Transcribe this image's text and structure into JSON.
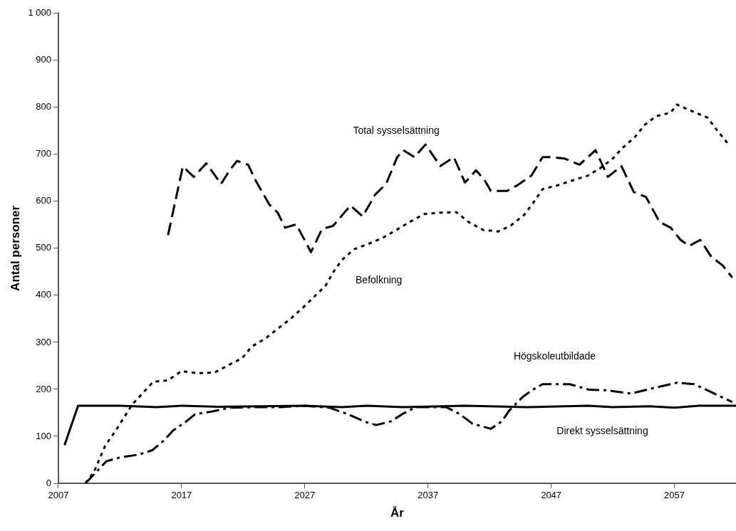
{
  "chart_data": {
    "type": "line",
    "xlabel": "År",
    "ylabel": "Antal personer",
    "xlim": [
      2007,
      2062
    ],
    "xticks": [
      2007,
      2017,
      2027,
      2037,
      2047,
      2057
    ],
    "ylim": [
      0,
      1000
    ],
    "yticks": [
      0,
      100,
      200,
      300,
      400,
      500,
      600,
      700,
      800,
      900,
      {
        "value": 1000,
        "label": "1 000"
      }
    ],
    "grid": false,
    "legend": false,
    "marker": "none",
    "series": [
      {
        "name": "Total sysselsättning",
        "color": "#000000",
        "line_style": "dashed",
        "x": [
          2015.9,
          2017.1,
          2018,
          2019,
          2019.5,
          2020.2,
          2020.9,
          2021.5,
          2022.4,
          2023,
          2024.1,
          2024.8,
          2025.4,
          2026.3,
          2026.9,
          2027.5,
          2028.4,
          2029.3,
          2030.7,
          2031.7,
          2032.7,
          2033.6,
          2034.5,
          2035,
          2035.9,
          2036.8,
          2038,
          2039.1,
          2040,
          2040.9,
          2041.6,
          2042.1,
          2043.4,
          2044.3,
          2045.4,
          2046.3,
          2047.1,
          2048.1,
          2049.3,
          2050.6,
          2051.6,
          2052.7,
          2053.7,
          2054.7,
          2055.8,
          2056.7,
          2057.5,
          2058.2,
          2059.1,
          2060,
          2060.9,
          2061.7
        ],
        "values": [
          528,
          674,
          652,
          681,
          663,
          637,
          666,
          686,
          678,
          645,
          594,
          576,
          544,
          551,
          522,
          492,
          541,
          548,
          591,
          568,
          614,
          637,
          694,
          709,
          694,
          721,
          675,
          694,
          640,
          666,
          645,
          622,
          622,
          635,
          655,
          694,
          694,
          691,
          678,
          709,
          652,
          675,
          620,
          609,
          556,
          544,
          518,
          505,
          518,
          482,
          464,
          438
        ]
      },
      {
        "name": "Befolkning",
        "color": "#000000",
        "line_style": "dotted",
        "x": [
          2009.2,
          2009.9,
          2010.8,
          2011.6,
          2013,
          2014.7,
          2015.9,
          2017,
          2018.3,
          2019.7,
          2020.7,
          2021.9,
          2022.7,
          2023.8,
          2024.8,
          2025.8,
          2026.9,
          2028.7,
          2029.3,
          2030,
          2031,
          2032.2,
          2033.3,
          2034.3,
          2035.5,
          2036.7,
          2038,
          2039.3,
          2040.3,
          2041.5,
          2042.7,
          2043.7,
          2044.8,
          2045.6,
          2046.3,
          2047.5,
          2048.8,
          2050,
          2051,
          2052,
          2052.8,
          2053.8,
          2054.6,
          2055.5,
          2056.7,
          2057.2,
          2058.6,
          2059.7,
          2060.5,
          2061.4
        ],
        "values": [
          0,
          25,
          80,
          110,
          168,
          216,
          219,
          239,
          234,
          236,
          250,
          266,
          291,
          308,
          329,
          349,
          375,
          421,
          449,
          475,
          498,
          510,
          522,
          537,
          556,
          573,
          576,
          577,
          556,
          539,
          536,
          548,
          571,
          599,
          626,
          634,
          645,
          655,
          671,
          691,
          714,
          737,
          763,
          781,
          789,
          806,
          790,
          778,
          750,
          721
        ]
      },
      {
        "name": "Högskoleutbildade",
        "color": "#000000",
        "line_style": "dashdot",
        "x": [
          2009.2,
          2010.9,
          2012,
          2013.5,
          2014.6,
          2015.6,
          2016.3,
          2017.4,
          2018.1,
          2019.5,
          2021,
          2023,
          2025,
          2026.9,
          2029,
          2030.5,
          2032,
          2032.8,
          2034,
          2034.9,
          2036,
          2038.5,
          2039.6,
          2040.6,
          2042.1,
          2043,
          2043.6,
          2044.7,
          2045.5,
          2046.3,
          2048.5,
          2050.1,
          2051.5,
          2053.5,
          2055.5,
          2057.2,
          2058.6,
          2059.6,
          2060.8,
          2061.7
        ],
        "values": [
          0,
          47,
          55,
          61,
          70,
          92,
          112,
          132,
          147,
          153,
          161,
          162,
          162,
          165,
          161,
          147,
          130,
          124,
          132,
          147,
          162,
          162,
          147,
          127,
          116,
          132,
          155,
          184,
          199,
          211,
          211,
          199,
          198,
          191,
          204,
          214,
          211,
          199,
          184,
          173
        ]
      },
      {
        "name": "Direkt sysselsättning",
        "color": "#000000",
        "line_style": "solid",
        "x": [
          2007.5,
          2008.6,
          2012,
          2015,
          2017,
          2020,
          2027,
          2030,
          2032,
          2035,
          2040,
          2045,
          2050,
          2052,
          2055,
          2057,
          2059,
          2062
        ],
        "values": [
          81,
          165,
          165,
          162,
          165,
          163,
          165,
          162,
          165,
          162,
          165,
          162,
          165,
          162,
          164,
          161,
          165,
          165
        ]
      }
    ]
  }
}
